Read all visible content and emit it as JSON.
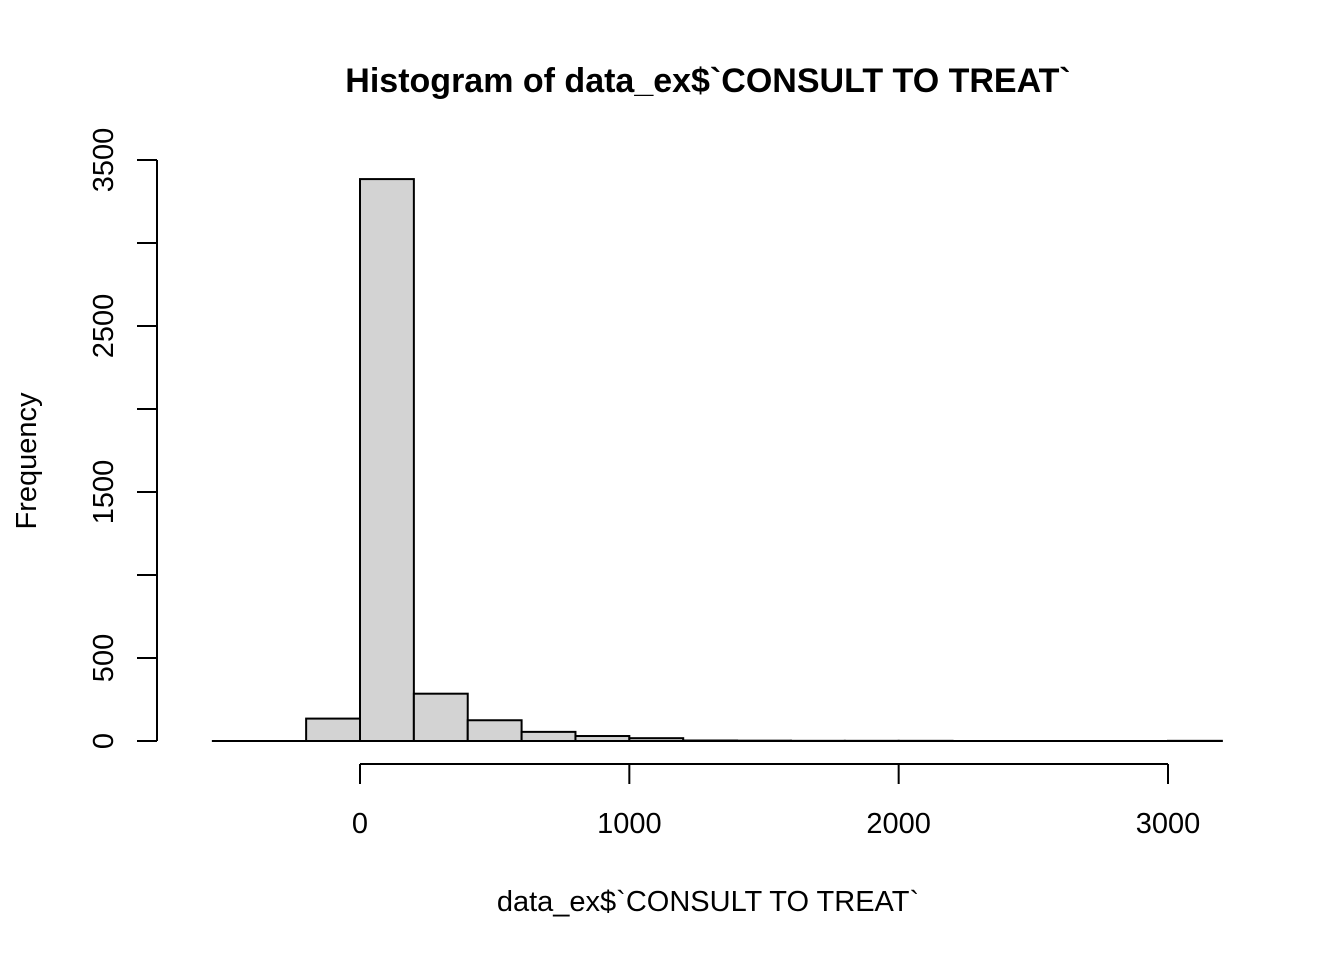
{
  "chart_data": {
    "type": "bar",
    "title": "Histogram of data_ex$`CONSULT TO TREAT`",
    "xlabel": "data_ex$`CONSULT TO TREAT`",
    "ylabel": "Frequency",
    "xlim": [
      -600,
      3200
    ],
    "ylim": [
      0,
      3500
    ],
    "x_ticks": [
      0,
      1000,
      2000,
      3000
    ],
    "y_ticks": [
      0,
      500,
      1000,
      1500,
      2000,
      2500,
      3000,
      3500
    ],
    "y_tick_labels": [
      "0",
      "500",
      "",
      "1500",
      "",
      "2500",
      "",
      "3500"
    ],
    "bins": [
      {
        "start": -200,
        "end": 0,
        "count": 135
      },
      {
        "start": 0,
        "end": 200,
        "count": 3385
      },
      {
        "start": 200,
        "end": 400,
        "count": 285
      },
      {
        "start": 400,
        "end": 600,
        "count": 125
      },
      {
        "start": 600,
        "end": 800,
        "count": 55
      },
      {
        "start": 800,
        "end": 1000,
        "count": 30
      },
      {
        "start": 1000,
        "end": 1200,
        "count": 17
      },
      {
        "start": 1200,
        "end": 1400,
        "count": 3
      },
      {
        "start": 1400,
        "end": 1600,
        "count": 2
      },
      {
        "start": 1600,
        "end": 1800,
        "count": 1
      },
      {
        "start": 1800,
        "end": 2000,
        "count": 1
      },
      {
        "start": 2000,
        "end": 2200,
        "count": 1
      },
      {
        "start": 2200,
        "end": 2400,
        "count": 0
      },
      {
        "start": 2400,
        "end": 2600,
        "count": 0
      },
      {
        "start": 2600,
        "end": 2800,
        "count": 0
      },
      {
        "start": 2800,
        "end": 3000,
        "count": 0
      },
      {
        "start": 3000,
        "end": 3200,
        "count": 1
      }
    ],
    "grid": false,
    "colors": {
      "bar_fill": "#d3d3d3",
      "bar_stroke": "#000000"
    }
  }
}
